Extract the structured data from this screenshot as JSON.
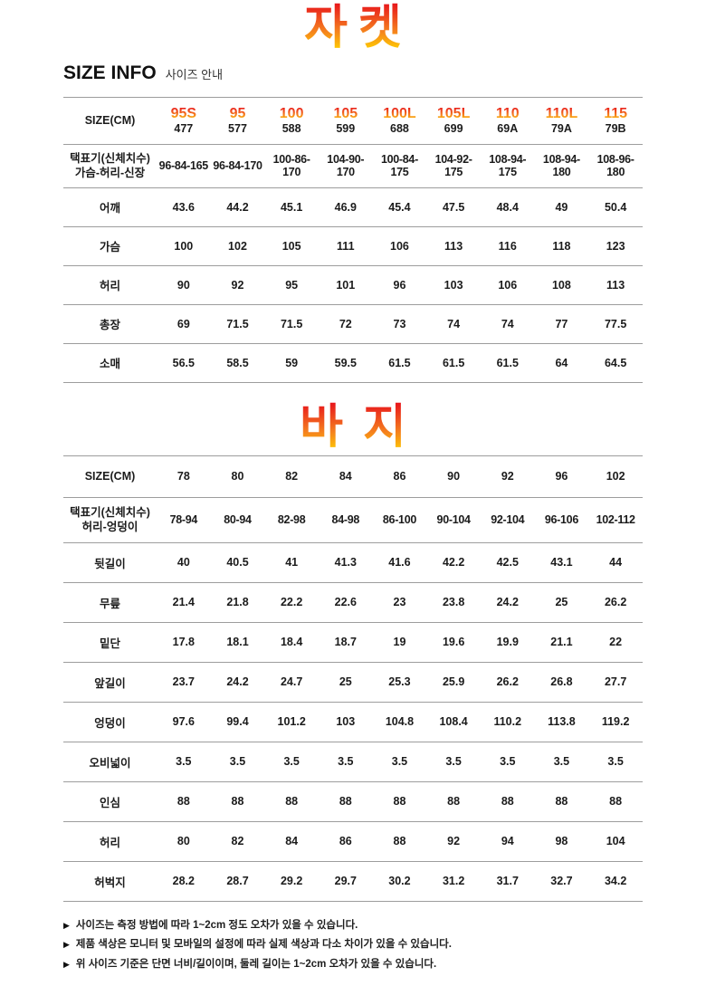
{
  "colors": {
    "gradient_top": "#e8191c",
    "gradient_mid": "#f47a1f",
    "gradient_bottom": "#ffd400",
    "rule_line": "#9d9d9d",
    "text_primary": "#1b1b1b"
  },
  "jacket": {
    "title": "자켓",
    "table": {
      "header": {
        "label": "SIZE(CM)",
        "columns": [
          {
            "size": "95S",
            "code": "477"
          },
          {
            "size": "95",
            "code": "577"
          },
          {
            "size": "100",
            "code": "588"
          },
          {
            "size": "105",
            "code": "599"
          },
          {
            "size": "100L",
            "code": "688"
          },
          {
            "size": "105L",
            "code": "699"
          },
          {
            "size": "110",
            "code": "69A"
          },
          {
            "size": "110L",
            "code": "79A"
          },
          {
            "size": "115",
            "code": "79B"
          }
        ]
      },
      "rows": [
        {
          "label": "택표기(신체치수)",
          "label2": "가슴-허리-신장",
          "values": [
            "96-84-165",
            "96-84-170",
            "100-86-170",
            "104-90-170",
            "100-84-175",
            "104-92-175",
            "108-94-175",
            "108-94-180",
            "108-96-180"
          ]
        },
        {
          "label": "어깨",
          "values": [
            "43.6",
            "44.2",
            "45.1",
            "46.9",
            "45.4",
            "47.5",
            "48.4",
            "49",
            "50.4"
          ]
        },
        {
          "label": "가슴",
          "values": [
            "100",
            "102",
            "105",
            "111",
            "106",
            "113",
            "116",
            "118",
            "123"
          ]
        },
        {
          "label": "허리",
          "values": [
            "90",
            "92",
            "95",
            "101",
            "96",
            "103",
            "106",
            "108",
            "113"
          ]
        },
        {
          "label": "총장",
          "values": [
            "69",
            "71.5",
            "71.5",
            "72",
            "73",
            "74",
            "74",
            "77",
            "77.5"
          ]
        },
        {
          "label": "소매",
          "values": [
            "56.5",
            "58.5",
            "59",
            "59.5",
            "61.5",
            "61.5",
            "61.5",
            "64",
            "64.5"
          ]
        }
      ]
    }
  },
  "size_info": {
    "label": "SIZE INFO",
    "sub": "사이즈 안내"
  },
  "pants": {
    "title": "바지",
    "table": {
      "header": {
        "label": "SIZE(CM)",
        "columns": [
          {
            "size": "78"
          },
          {
            "size": "80"
          },
          {
            "size": "82"
          },
          {
            "size": "84"
          },
          {
            "size": "86"
          },
          {
            "size": "90"
          },
          {
            "size": "92"
          },
          {
            "size": "96"
          },
          {
            "size": "102"
          }
        ]
      },
      "rows": [
        {
          "label": "택표기(신체치수)",
          "label2": "허리-엉덩이",
          "values": [
            "78-94",
            "80-94",
            "82-98",
            "84-98",
            "86-100",
            "90-104",
            "92-104",
            "96-106",
            "102-112"
          ]
        },
        {
          "label": "뒷길이",
          "values": [
            "40",
            "40.5",
            "41",
            "41.3",
            "41.6",
            "42.2",
            "42.5",
            "43.1",
            "44"
          ]
        },
        {
          "label": "무릎",
          "values": [
            "21.4",
            "21.8",
            "22.2",
            "22.6",
            "23",
            "23.8",
            "24.2",
            "25",
            "26.2"
          ]
        },
        {
          "label": "밑단",
          "values": [
            "17.8",
            "18.1",
            "18.4",
            "18.7",
            "19",
            "19.6",
            "19.9",
            "21.1",
            "22"
          ]
        },
        {
          "label": "앞길이",
          "values": [
            "23.7",
            "24.2",
            "24.7",
            "25",
            "25.3",
            "25.9",
            "26.2",
            "26.8",
            "27.7"
          ]
        },
        {
          "label": "엉덩이",
          "values": [
            "97.6",
            "99.4",
            "101.2",
            "103",
            "104.8",
            "108.4",
            "110.2",
            "113.8",
            "119.2"
          ]
        },
        {
          "label": "오비넓이",
          "values": [
            "3.5",
            "3.5",
            "3.5",
            "3.5",
            "3.5",
            "3.5",
            "3.5",
            "3.5",
            "3.5"
          ]
        },
        {
          "label": "인심",
          "values": [
            "88",
            "88",
            "88",
            "88",
            "88",
            "88",
            "88",
            "88",
            "88"
          ]
        },
        {
          "label": "허리",
          "values": [
            "80",
            "82",
            "84",
            "86",
            "88",
            "92",
            "94",
            "98",
            "104"
          ]
        },
        {
          "label": "허벅지",
          "values": [
            "28.2",
            "28.7",
            "29.2",
            "29.7",
            "30.2",
            "31.2",
            "31.7",
            "32.7",
            "34.2"
          ]
        }
      ]
    }
  },
  "footer": {
    "bullet": "▶",
    "notes": [
      "사이즈는 측정 방법에 따라 1~2cm 정도 오차가 있을 수 있습니다.",
      "제품 색상은 모니터 및 모바일의 설정에 따라 실제 색상과 다소 차이가 있을 수 있습니다.",
      "위 사이즈 기준은 단면 너비/길이이며, 둘레 길이는 1~2cm 오차가 있을 수 있습니다."
    ]
  }
}
